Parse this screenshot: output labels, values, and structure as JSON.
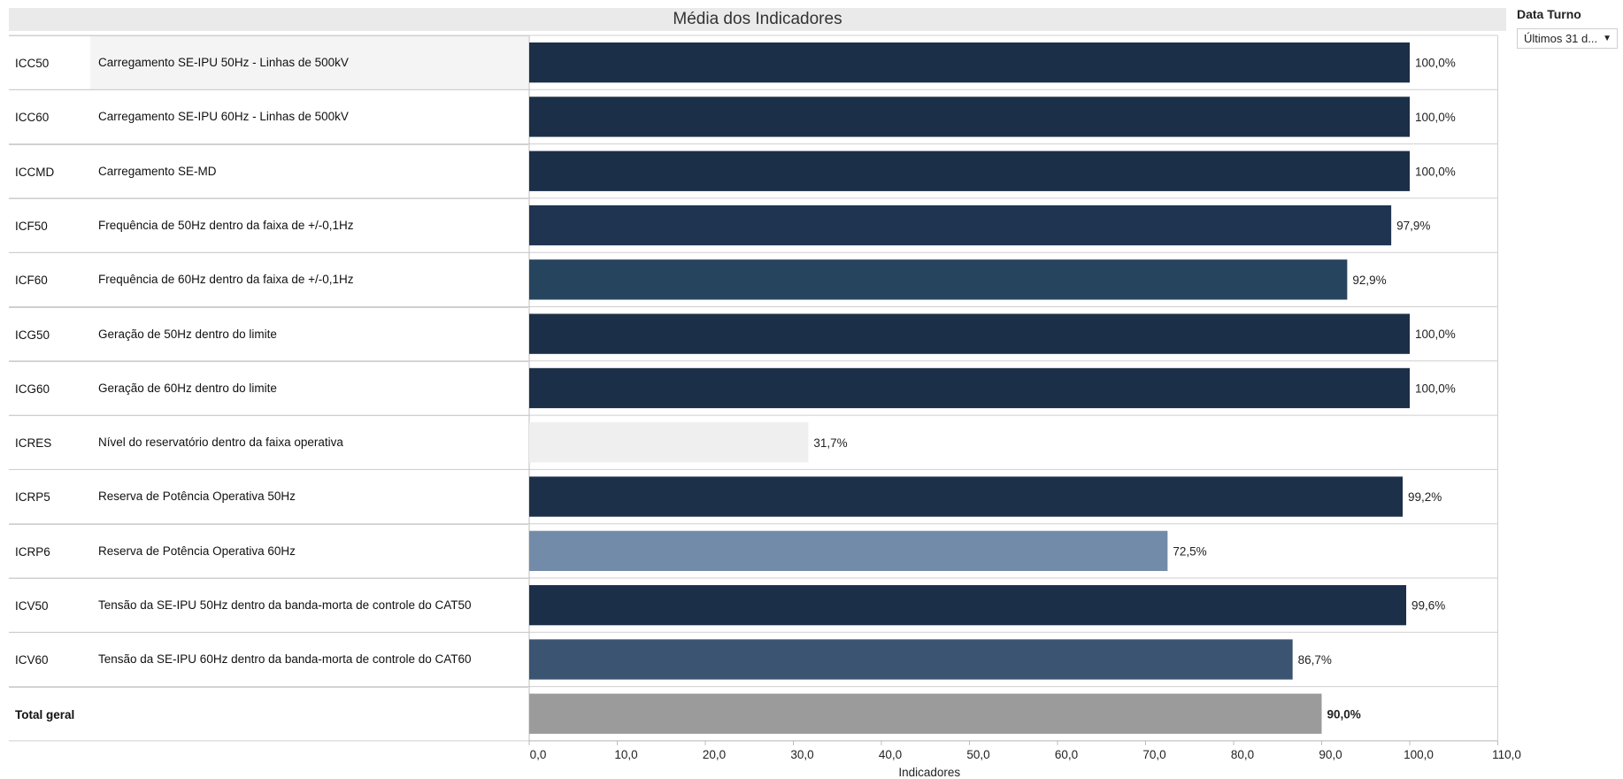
{
  "chart_data": {
    "type": "bar",
    "orientation": "horizontal",
    "title": "Média dos Indicadores",
    "xlabel": "Indicadores",
    "xlim": [
      0,
      110
    ],
    "ticks": [
      "0,0",
      "10,0",
      "20,0",
      "30,0",
      "40,0",
      "50,0",
      "60,0",
      "70,0",
      "80,0",
      "90,0",
      "100,0",
      "110,0"
    ],
    "tick_values": [
      0,
      10,
      20,
      30,
      40,
      50,
      60,
      70,
      80,
      90,
      100,
      110
    ],
    "rows": [
      {
        "code": "ICC50",
        "name": "Carregamento SE-IPU 50Hz - Linhas de 500kV",
        "value": 100.0,
        "label": "100,0%",
        "color": "#1b2f48"
      },
      {
        "code": "ICC60",
        "name": "Carregamento SE-IPU 60Hz - Linhas de 500kV",
        "value": 100.0,
        "label": "100,0%",
        "color": "#1b2f48"
      },
      {
        "code": "ICCMD",
        "name": "Carregamento SE-MD",
        "value": 100.0,
        "label": "100,0%",
        "color": "#1b2f48"
      },
      {
        "code": "ICF50",
        "name": "Frequência de 50Hz dentro da faixa de +/-0,1Hz",
        "value": 97.9,
        "label": "97,9%",
        "color": "#1e3450"
      },
      {
        "code": "ICF60",
        "name": "Frequência de 60Hz dentro da faixa de +/-0,1Hz",
        "value": 92.9,
        "label": "92,9%",
        "color": "#27445f"
      },
      {
        "code": "ICG50",
        "name": "Geração de 50Hz dentro do limite",
        "value": 100.0,
        "label": "100,0%",
        "color": "#1b2f48"
      },
      {
        "code": "ICG60",
        "name": "Geração de 60Hz dentro do limite",
        "value": 100.0,
        "label": "100,0%",
        "color": "#1b2f48"
      },
      {
        "code": "ICRES",
        "name": "Nível do reservatório dentro da faixa operativa",
        "value": 31.7,
        "label": "31,7%",
        "color": "#efefef"
      },
      {
        "code": "ICRP5",
        "name": "Reserva de Potência Operativa 50Hz",
        "value": 99.2,
        "label": "99,2%",
        "color": "#1c304a"
      },
      {
        "code": "ICRP6",
        "name": "Reserva de Potência Operativa 60Hz",
        "value": 72.5,
        "label": "72,5%",
        "color": "#728ba8"
      },
      {
        "code": "ICV50",
        "name": "Tensão da SE-IPU 50Hz dentro da banda-morta de controle do CAT50",
        "value": 99.6,
        "label": "99,6%",
        "color": "#1b2f49"
      },
      {
        "code": "ICV60",
        "name": "Tensão da SE-IPU 60Hz dentro da banda-morta de controle do CAT60",
        "value": 86.7,
        "label": "86,7%",
        "color": "#3a5472"
      }
    ],
    "total": {
      "code": "Total geral",
      "name": "",
      "value": 90.0,
      "label": "90,0%",
      "color": "#9b9b9b"
    },
    "grid": false
  },
  "filter": {
    "title": "Data Turno",
    "selected": "Últimos 31 d...",
    "arrow_icon": "dropdown-arrow-icon"
  }
}
